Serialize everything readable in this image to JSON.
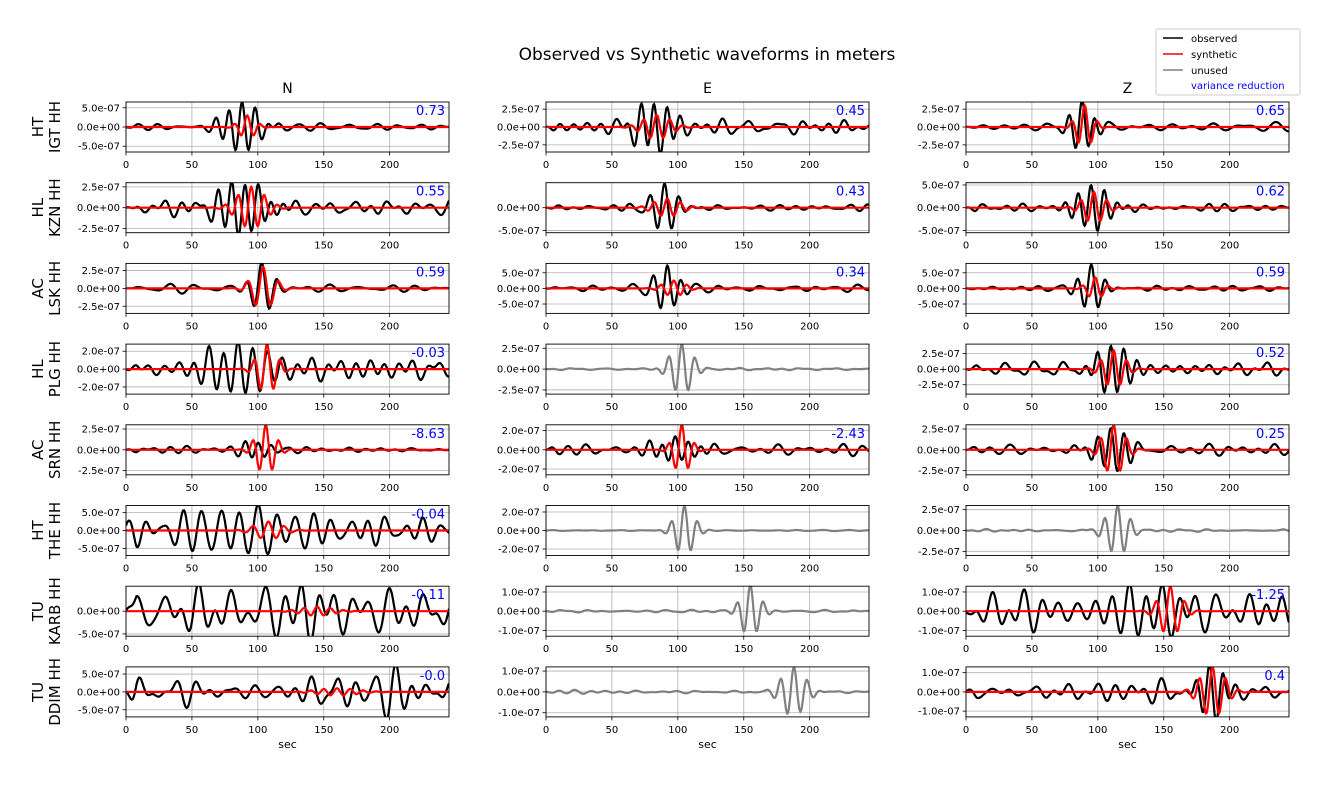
{
  "title": "Observed vs Synthetic waveforms in meters",
  "legend": {
    "placement": "top-right",
    "entries": [
      {
        "label": "observed",
        "color": "#000000",
        "kind": "line"
      },
      {
        "label": "synthetic",
        "color": "#ff0000",
        "kind": "line"
      },
      {
        "label": "unused",
        "color": "#808080",
        "kind": "line"
      },
      {
        "label": "variance reduction",
        "color": "#0000ff",
        "kind": "text"
      }
    ]
  },
  "columns": [
    "N",
    "E",
    "Z"
  ],
  "xlabel": "sec",
  "colors": {
    "observed": "#000000",
    "synthetic": "#ff0000",
    "unused": "#808080",
    "vr": "#0000ff",
    "grid": "#b0b0b0"
  },
  "chart_data": {
    "type": "line",
    "grid": true,
    "xlim": [
      0,
      245
    ],
    "xticks": [
      "0",
      "50",
      "100",
      "150",
      "200"
    ],
    "stations": [
      {
        "net": "HT",
        "label": "IGT HH",
        "panels": [
          {
            "ylim": [
              -6.5e-07,
              6.5e-07
            ],
            "ytick_values": [
              5e-07,
              0,
              -5e-07
            ],
            "ytick_labels": [
              "5.0e-07",
              "0.0e+00",
              "-5.0e-07"
            ],
            "vr": "0.73",
            "unused": false,
            "obs": {
              "center": 88,
              "amp": 6.5e-07,
              "width": 12,
              "period": 10,
              "noise": 8e-08
            },
            "syn": {
              "center": 92,
              "amp": 3e-07,
              "width": 6,
              "period": 10
            }
          },
          {
            "ylim": [
              -3.5e-07,
              3.5e-07
            ],
            "ytick_values": [
              2.5e-07,
              0,
              -2.5e-07
            ],
            "ytick_labels": [
              "2.5e-07",
              "0.0e+00",
              "-2.5e-07"
            ],
            "vr": "0.45",
            "unused": false,
            "obs": {
              "center": 82,
              "amp": 3.5e-07,
              "width": 12,
              "period": 10,
              "noise": 7e-08
            },
            "syn": {
              "center": 84,
              "amp": 1.7e-07,
              "width": 10,
              "period": 10
            }
          },
          {
            "ylim": [
              -3.5e-07,
              3.5e-07
            ],
            "ytick_values": [
              2.5e-07,
              0,
              -2.5e-07
            ],
            "ytick_labels": [
              "2.5e-07",
              "0.0e+00",
              "-2.5e-07"
            ],
            "vr": "0.65",
            "unused": false,
            "obs": {
              "center": 88,
              "amp": 3.5e-07,
              "width": 8,
              "period": 10,
              "noise": 4e-08
            },
            "syn": {
              "center": 90,
              "amp": 3e-07,
              "width": 6,
              "period": 10
            }
          }
        ]
      },
      {
        "net": "HL",
        "label": "KZN HH",
        "panels": [
          {
            "ylim": [
              -3e-07,
              3e-07
            ],
            "ytick_values": [
              2.5e-07,
              0,
              -2.5e-07
            ],
            "ytick_labels": [
              "2.5e-07",
              "0.0e+00",
              "-2.5e-07"
            ],
            "vr": "0.55",
            "unused": false,
            "obs": {
              "center": 90,
              "amp": 3e-07,
              "width": 18,
              "period": 10,
              "noise": 8e-08
            },
            "syn": {
              "center": 95,
              "amp": 2.5e-07,
              "width": 10,
              "period": 10
            }
          },
          {
            "ylim": [
              -5.5e-07,
              5.5e-07
            ],
            "ytick_values": [
              0,
              -5e-07
            ],
            "ytick_labels": [
              "0.0e+00",
              "-5.0e-07"
            ],
            "vr": "0.43",
            "unused": false,
            "obs": {
              "center": 90,
              "amp": 5.5e-07,
              "width": 9,
              "period": 11,
              "noise": 6e-08
            },
            "syn": {
              "center": 92,
              "amp": 2e-07,
              "width": 10,
              "period": 10
            }
          },
          {
            "ylim": [
              -5.5e-07,
              5.5e-07
            ],
            "ytick_values": [
              5e-07,
              0,
              -5e-07
            ],
            "ytick_labels": [
              "5.0e-07",
              "0.0e+00",
              "-5.0e-07"
            ],
            "vr": "0.62",
            "unused": false,
            "obs": {
              "center": 95,
              "amp": 5e-07,
              "width": 12,
              "period": 10,
              "noise": 8e-08
            },
            "syn": {
              "center": 97,
              "amp": 3.5e-07,
              "width": 8,
              "period": 10
            }
          }
        ]
      },
      {
        "net": "AC",
        "label": "LSK HH",
        "panels": [
          {
            "ylim": [
              -3.5e-07,
              3.5e-07
            ],
            "ytick_values": [
              2.5e-07,
              0,
              -2.5e-07
            ],
            "ytick_labels": [
              "2.5e-07",
              "0.0e+00",
              "-2.5e-07"
            ],
            "vr": "0.59",
            "unused": false,
            "obs": {
              "center": 103,
              "amp": 3.5e-07,
              "width": 8,
              "period": 12,
              "noise": 4e-08
            },
            "syn": {
              "center": 104,
              "amp": 3e-07,
              "width": 8,
              "period": 12
            }
          },
          {
            "ylim": [
              -8e-07,
              8e-07
            ],
            "ytick_values": [
              5e-07,
              0,
              -5e-07
            ],
            "ytick_labels": [
              "5.0e-07",
              "0.0e+00",
              "-5.0e-07"
            ],
            "vr": "0.34",
            "unused": false,
            "obs": {
              "center": 92,
              "amp": 8e-07,
              "width": 8,
              "period": 11,
              "noise": 1.2e-07
            },
            "syn": {
              "center": 97,
              "amp": 2.5e-07,
              "width": 8,
              "period": 10
            }
          },
          {
            "ylim": [
              -8e-07,
              8e-07
            ],
            "ytick_values": [
              5e-07,
              0,
              -5e-07
            ],
            "ytick_labels": [
              "5.0e-07",
              "0.0e+00",
              "-5.0e-07"
            ],
            "vr": "0.59",
            "unused": false,
            "obs": {
              "center": 95,
              "amp": 8e-07,
              "width": 8,
              "period": 11,
              "noise": 8e-08
            },
            "syn": {
              "center": 98,
              "amp": 3.5e-07,
              "width": 6,
              "period": 10
            }
          }
        ]
      },
      {
        "net": "HL",
        "label": "PLG HH",
        "panels": [
          {
            "ylim": [
              -2.8e-07,
              2.8e-07
            ],
            "ytick_values": [
              2e-07,
              0,
              -2e-07
            ],
            "ytick_labels": [
              "2.0e-07",
              "0.0e+00",
              "-2.0e-07"
            ],
            "vr": "-0.03",
            "unused": false,
            "obs": {
              "center": 85,
              "amp": 2.8e-07,
              "width": 25,
              "period": 11,
              "noise": 8e-08
            },
            "syn": {
              "center": 107,
              "amp": 2.8e-07,
              "width": 7,
              "period": 10
            }
          },
          {
            "ylim": [
              -3e-07,
              3e-07
            ],
            "ytick_values": [
              2.5e-07,
              0,
              -2.5e-07
            ],
            "ytick_labels": [
              "2.5e-07",
              "0.0e+00",
              "-2.5e-07"
            ],
            "vr": "",
            "unused": true,
            "obs": {
              "center": 103,
              "amp": 3e-07,
              "width": 8,
              "period": 10,
              "noise": 1e-08
            },
            "syn": null
          },
          {
            "ylim": [
              -4e-07,
              4e-07
            ],
            "ytick_values": [
              2.5e-07,
              0,
              -2.5e-07
            ],
            "ytick_labels": [
              "2.5e-07",
              "0.0e+00",
              "-2.5e-07"
            ],
            "vr": "0.52",
            "unused": false,
            "obs": {
              "center": 110,
              "amp": 4e-07,
              "width": 12,
              "period": 10,
              "noise": 7e-08
            },
            "syn": {
              "center": 112,
              "amp": 3e-07,
              "width": 8,
              "period": 10
            }
          }
        ]
      },
      {
        "net": "AC",
        "label": "SRN HH",
        "panels": [
          {
            "ylim": [
              -3e-07,
              3e-07
            ],
            "ytick_values": [
              2.5e-07,
              0,
              -2.5e-07
            ],
            "ytick_labels": [
              "2.5e-07",
              "0.0e+00",
              "-2.5e-07"
            ],
            "vr": "-8.63",
            "unused": false,
            "obs": {
              "center": 100,
              "amp": 1e-07,
              "width": 10,
              "period": 10,
              "noise": 3e-08
            },
            "syn": {
              "center": 106,
              "amp": 3e-07,
              "width": 7,
              "period": 10
            }
          },
          {
            "ylim": [
              -2.6e-07,
              2.6e-07
            ],
            "ytick_values": [
              2e-07,
              0,
              -2e-07
            ],
            "ytick_labels": [
              "2.0e-07",
              "0.0e+00",
              "-2.0e-07"
            ],
            "vr": "-2.43",
            "unused": false,
            "obs": {
              "center": 98,
              "amp": 1.2e-07,
              "width": 15,
              "period": 10,
              "noise": 5e-08
            },
            "syn": {
              "center": 103,
              "amp": 2.6e-07,
              "width": 6,
              "period": 10
            }
          },
          {
            "ylim": [
              -3e-07,
              3e-07
            ],
            "ytick_values": [
              2.5e-07,
              0,
              -2.5e-07
            ],
            "ytick_labels": [
              "2.5e-07",
              "0.0e+00",
              "-2.5e-07"
            ],
            "vr": "0.25",
            "unused": false,
            "obs": {
              "center": 110,
              "amp": 2.5e-07,
              "width": 12,
              "period": 10,
              "noise": 5e-08
            },
            "syn": {
              "center": 112,
              "amp": 3e-07,
              "width": 8,
              "period": 10
            }
          }
        ]
      },
      {
        "net": "HT",
        "label": "THE HH",
        "panels": [
          {
            "ylim": [
              -7e-07,
              7e-07
            ],
            "ytick_values": [
              5e-07,
              0,
              -5e-07
            ],
            "ytick_labels": [
              "5.0e-07",
              "0.0e+00",
              "-5.0e-07"
            ],
            "vr": "-0.04",
            "unused": false,
            "obs": {
              "center": 100,
              "amp": 5e-07,
              "width": 80,
              "period": 14,
              "noise": 2.5e-07
            },
            "syn": {
              "center": 108,
              "amp": 2.5e-07,
              "width": 10,
              "period": 12
            }
          },
          {
            "ylim": [
              -2.7e-07,
              2.7e-07
            ],
            "ytick_values": [
              2e-07,
              0,
              -2e-07
            ],
            "ytick_labels": [
              "2.0e-07",
              "0.0e+00",
              "-2.0e-07"
            ],
            "vr": "",
            "unused": true,
            "obs": {
              "center": 105,
              "amp": 2.7e-07,
              "width": 7,
              "period": 10,
              "noise": 5e-09
            },
            "syn": null
          },
          {
            "ylim": [
              -3e-07,
              3e-07
            ],
            "ytick_values": [
              2.5e-07,
              0,
              -2.5e-07
            ],
            "ytick_labels": [
              "2.5e-07",
              "0.0e+00",
              "-2.5e-07"
            ],
            "vr": "",
            "unused": true,
            "obs": {
              "center": 115,
              "amp": 3e-07,
              "width": 8,
              "period": 10,
              "noise": 1e-08
            },
            "syn": null
          }
        ]
      },
      {
        "net": "TU",
        "label": "KARB HH",
        "panels": [
          {
            "ylim": [
              -5.5e-07,
              5.5e-07
            ],
            "ytick_values": [
              0,
              -5e-07
            ],
            "ytick_labels": [
              "0.0e+00",
              "-5.0e-07"
            ],
            "vr": "-0.11",
            "unused": false,
            "obs": {
              "center": 120,
              "amp": 3e-07,
              "width": 90,
              "period": 13,
              "noise": 3e-07
            },
            "syn": {
              "center": 145,
              "amp": 1e-07,
              "width": 12,
              "period": 10
            }
          },
          {
            "ylim": [
              -1.3e-07,
              1.3e-07
            ],
            "ytick_values": [
              1e-07,
              0,
              -1e-07
            ],
            "ytick_labels": [
              "1.0e-07",
              "0.0e+00",
              "-1.0e-07"
            ],
            "vr": "",
            "unused": true,
            "obs": {
              "center": 155,
              "amp": 1.3e-07,
              "width": 7,
              "period": 10,
              "noise": 5e-09
            },
            "syn": null
          },
          {
            "ylim": [
              -1.3e-07,
              1.3e-07
            ],
            "ytick_values": [
              1e-07,
              0,
              -1e-07
            ],
            "ytick_labels": [
              "1.0e-07",
              "0.0e+00",
              "-1.0e-07"
            ],
            "vr": "-1.25",
            "unused": false,
            "obs": {
              "center": 150,
              "amp": 9e-08,
              "width": 70,
              "period": 13,
              "noise": 7e-08
            },
            "syn": {
              "center": 155,
              "amp": 1.3e-07,
              "width": 8,
              "period": 11
            }
          }
        ]
      },
      {
        "net": "TU",
        "label": "DDIM HH",
        "panels": [
          {
            "ylim": [
              -7e-07,
              7e-07
            ],
            "ytick_values": [
              5e-07,
              0,
              -5e-07
            ],
            "ytick_labels": [
              "5.0e-07",
              "0.0e+00",
              "-5.0e-07"
            ],
            "vr": "-0.0",
            "unused": false,
            "obs": {
              "center": 190,
              "amp": 6e-07,
              "width": 20,
              "period": 15,
              "noise": 3e-07
            },
            "syn": {
              "center": 160,
              "amp": 1e-07,
              "width": 15,
              "period": 10
            }
          },
          {
            "ylim": [
              -1.2e-07,
              1.2e-07
            ],
            "ytick_values": [
              1e-07,
              0,
              -1e-07
            ],
            "ytick_labels": [
              "1.0e-07",
              "0.0e+00",
              "-1.0e-07"
            ],
            "vr": "",
            "unused": true,
            "obs": {
              "center": 188,
              "amp": 1.1e-07,
              "width": 9,
              "period": 10,
              "noise": 5e-09
            },
            "syn": null
          },
          {
            "ylim": [
              -1.3e-07,
              1.3e-07
            ],
            "ytick_values": [
              1e-07,
              0,
              -1e-07
            ],
            "ytick_labels": [
              "1.0e-07",
              "0.0e+00",
              "-1.0e-07"
            ],
            "vr": "0.4",
            "unused": false,
            "obs": {
              "center": 185,
              "amp": 1.3e-07,
              "width": 10,
              "period": 10,
              "noise": 4e-08
            },
            "syn": {
              "center": 187,
              "amp": 1.3e-07,
              "width": 9,
              "period": 10
            }
          }
        ]
      }
    ]
  }
}
